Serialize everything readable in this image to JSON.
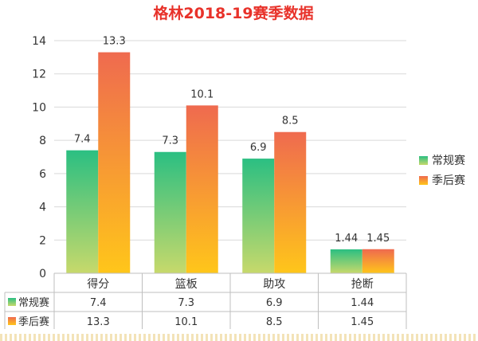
{
  "chart_data": {
    "type": "bar",
    "title": "格林2018-19赛季数据",
    "categories": [
      "得分",
      "篮板",
      "助攻",
      "抢断"
    ],
    "series": [
      {
        "name": "常规赛",
        "values": [
          7.4,
          7.3,
          6.9,
          1.44
        ],
        "labels": [
          "7.4",
          "7.3",
          "6.9",
          "1.44"
        ],
        "color_top": "#2bbf82",
        "color_bottom": "#c7d96b"
      },
      {
        "name": "季后赛",
        "values": [
          13.3,
          10.1,
          8.5,
          1.45
        ],
        "labels": [
          "13.3",
          "10.1",
          "8.5",
          "1.45"
        ],
        "color_top": "#ef6a4f",
        "color_bottom": "#ffc61a"
      }
    ],
    "ylim": [
      0,
      14
    ],
    "yticks": [
      "0",
      "2",
      "4",
      "6",
      "8",
      "10",
      "12",
      "14"
    ],
    "grid": true,
    "legend": "right",
    "data_table": true
  }
}
